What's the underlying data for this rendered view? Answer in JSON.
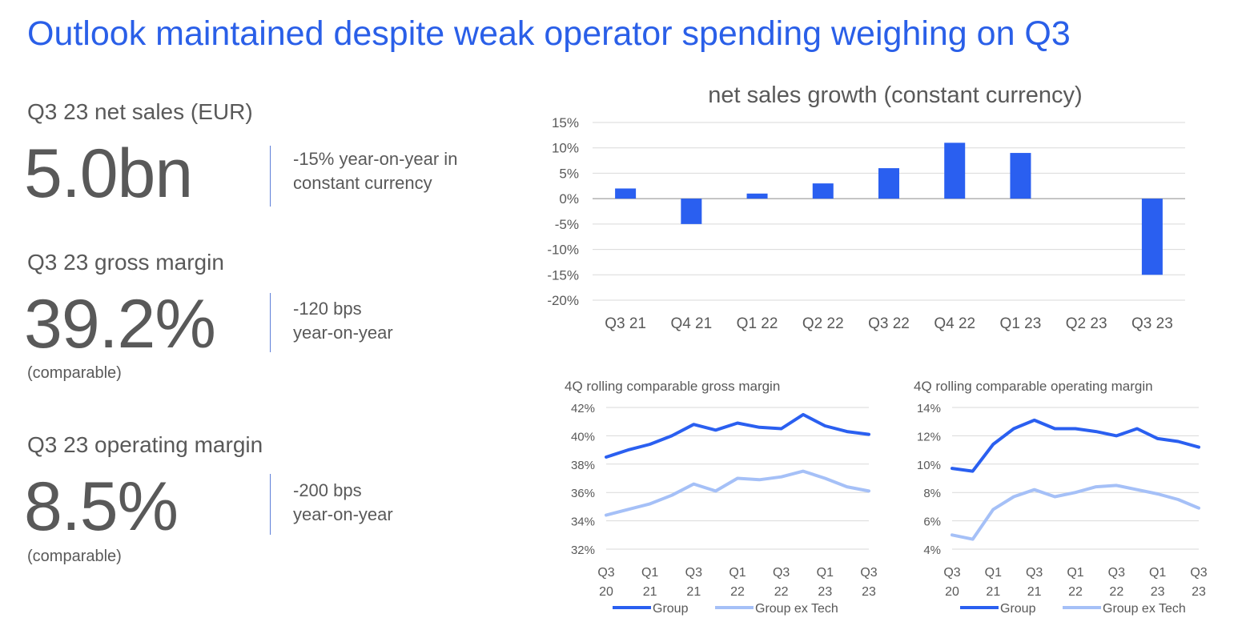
{
  "title": "Outlook maintained despite weak operator spending weighing on Q3",
  "kpis": [
    {
      "label": "Q3 23 net sales (EUR)",
      "value": "5.0bn",
      "note": "",
      "comment": [
        "-15%  year-on-year in",
        "constant currency"
      ]
    },
    {
      "label": "Q3 23 gross margin",
      "value": "39.2%",
      "note": "(comparable)",
      "comment": [
        "-120 bps",
        "year-on-year"
      ]
    },
    {
      "label": "Q3 23 operating margin",
      "value": "8.5%",
      "note": "(comparable)",
      "comment": [
        "-200 bps",
        "year-on-year"
      ]
    }
  ],
  "colors": {
    "accent": "#2a5fe8",
    "group": "#2a5ff0",
    "group_ex_tech": "#a5c0f7",
    "bar": "#2a5ff0",
    "text": "#595959"
  },
  "chart_data": [
    {
      "type": "bar",
      "title": "net sales growth (constant currency)",
      "categories": [
        "Q3 21",
        "Q4 21",
        "Q1 22",
        "Q2 22",
        "Q3 22",
        "Q4 22",
        "Q1 23",
        "Q2 23",
        "Q3 23"
      ],
      "values": [
        2,
        -5,
        1,
        3,
        6,
        11,
        9,
        0,
        -15
      ],
      "ylim": [
        -20,
        15
      ],
      "yticks": [
        "15%",
        "10%",
        "5%",
        "0%",
        "-5%",
        "-10%",
        "-15%",
        "-20%"
      ],
      "grid": true
    },
    {
      "type": "line",
      "title": "4Q rolling comparable gross margin",
      "x": [
        "Q3 20",
        "Q4 20",
        "Q1 21",
        "Q2 21",
        "Q3 21",
        "Q4 21",
        "Q1 22",
        "Q2 22",
        "Q3 22",
        "Q4 22",
        "Q1 23",
        "Q2 23",
        "Q3 23"
      ],
      "xticks": [
        [
          "Q3",
          "20"
        ],
        [
          "Q1",
          "21"
        ],
        [
          "Q3",
          "21"
        ],
        [
          "Q1",
          "22"
        ],
        [
          "Q3",
          "22"
        ],
        [
          "Q1",
          "23"
        ],
        [
          "Q3",
          "23"
        ]
      ],
      "series": [
        {
          "name": "Group",
          "values": [
            38.5,
            39.0,
            39.4,
            40.0,
            40.8,
            40.4,
            40.9,
            40.6,
            40.5,
            41.5,
            40.7,
            40.3,
            40.1
          ]
        },
        {
          "name": "Group ex Tech",
          "values": [
            34.4,
            34.8,
            35.2,
            35.8,
            36.6,
            36.1,
            37.0,
            36.9,
            37.1,
            37.5,
            37.0,
            36.4,
            36.1
          ]
        }
      ],
      "ylim": [
        32,
        42
      ],
      "yticks": [
        "42%",
        "40%",
        "38%",
        "36%",
        "34%",
        "32%"
      ],
      "legend": "bottom"
    },
    {
      "type": "line",
      "title": "4Q rolling comparable operating margin",
      "x": [
        "Q3 20",
        "Q4 20",
        "Q1 21",
        "Q2 21",
        "Q3 21",
        "Q4 21",
        "Q1 22",
        "Q2 22",
        "Q3 22",
        "Q4 22",
        "Q1 23",
        "Q2 23",
        "Q3 23"
      ],
      "xticks": [
        [
          "Q3",
          "20"
        ],
        [
          "Q1",
          "21"
        ],
        [
          "Q3",
          "21"
        ],
        [
          "Q1",
          "22"
        ],
        [
          "Q3",
          "22"
        ],
        [
          "Q1",
          "23"
        ],
        [
          "Q3",
          "23"
        ]
      ],
      "series": [
        {
          "name": "Group",
          "values": [
            9.7,
            9.5,
            11.4,
            12.5,
            13.1,
            12.5,
            12.5,
            12.3,
            12.0,
            12.5,
            11.8,
            11.6,
            11.2
          ]
        },
        {
          "name": "Group ex Tech",
          "values": [
            5.0,
            4.7,
            6.8,
            7.7,
            8.2,
            7.7,
            8.0,
            8.4,
            8.5,
            8.2,
            7.9,
            7.5,
            6.9
          ]
        }
      ],
      "ylim": [
        4,
        14
      ],
      "yticks": [
        "14%",
        "12%",
        "10%",
        "8%",
        "6%",
        "4%"
      ],
      "legend": "bottom"
    }
  ]
}
